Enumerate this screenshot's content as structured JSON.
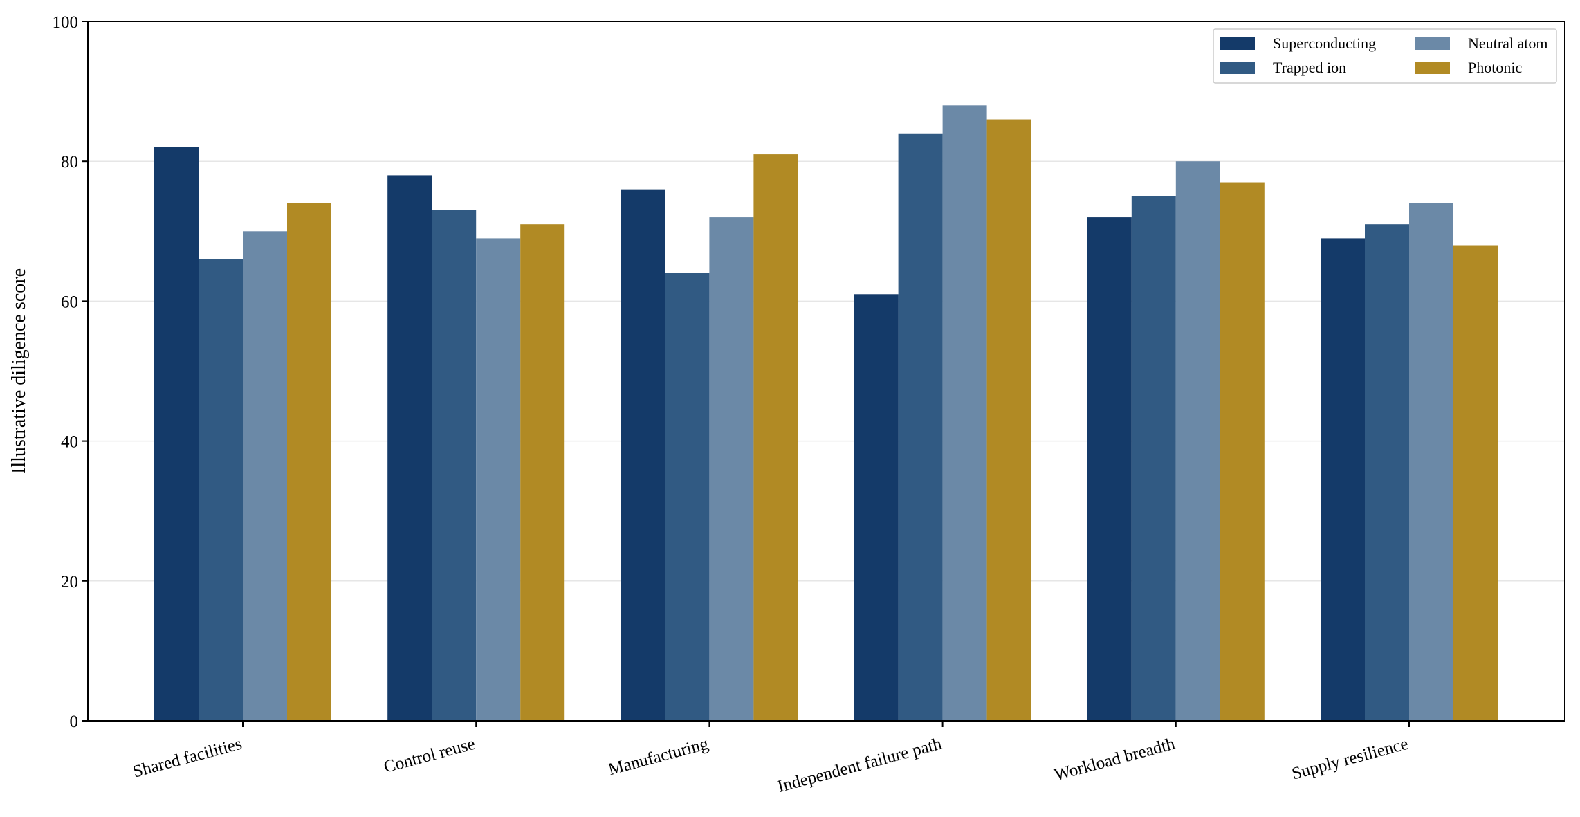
{
  "chart_data": {
    "type": "bar",
    "title": "",
    "xlabel": "",
    "ylabel": "Illustrative diligence score",
    "ylim": [
      0,
      100
    ],
    "yticks": [
      0,
      20,
      40,
      60,
      80,
      100
    ],
    "grid": "horizontal",
    "legend_position": "top-right",
    "categories": [
      "Shared facilities",
      "Control reuse",
      "Manufacturing",
      "Independent failure path",
      "Workload breadth",
      "Supply resilience"
    ],
    "series": [
      {
        "name": "Superconducting",
        "color": "#143a69",
        "values": [
          82,
          78,
          76,
          61,
          72,
          69
        ]
      },
      {
        "name": "Trapped ion",
        "color": "#315a83",
        "values": [
          66,
          73,
          64,
          84,
          75,
          71
        ]
      },
      {
        "name": "Neutral atom",
        "color": "#6b89a7",
        "values": [
          70,
          69,
          72,
          88,
          80,
          74
        ]
      },
      {
        "name": "Photonic",
        "color": "#b18a24",
        "values": [
          74,
          71,
          81,
          86,
          77,
          68
        ]
      }
    ]
  }
}
